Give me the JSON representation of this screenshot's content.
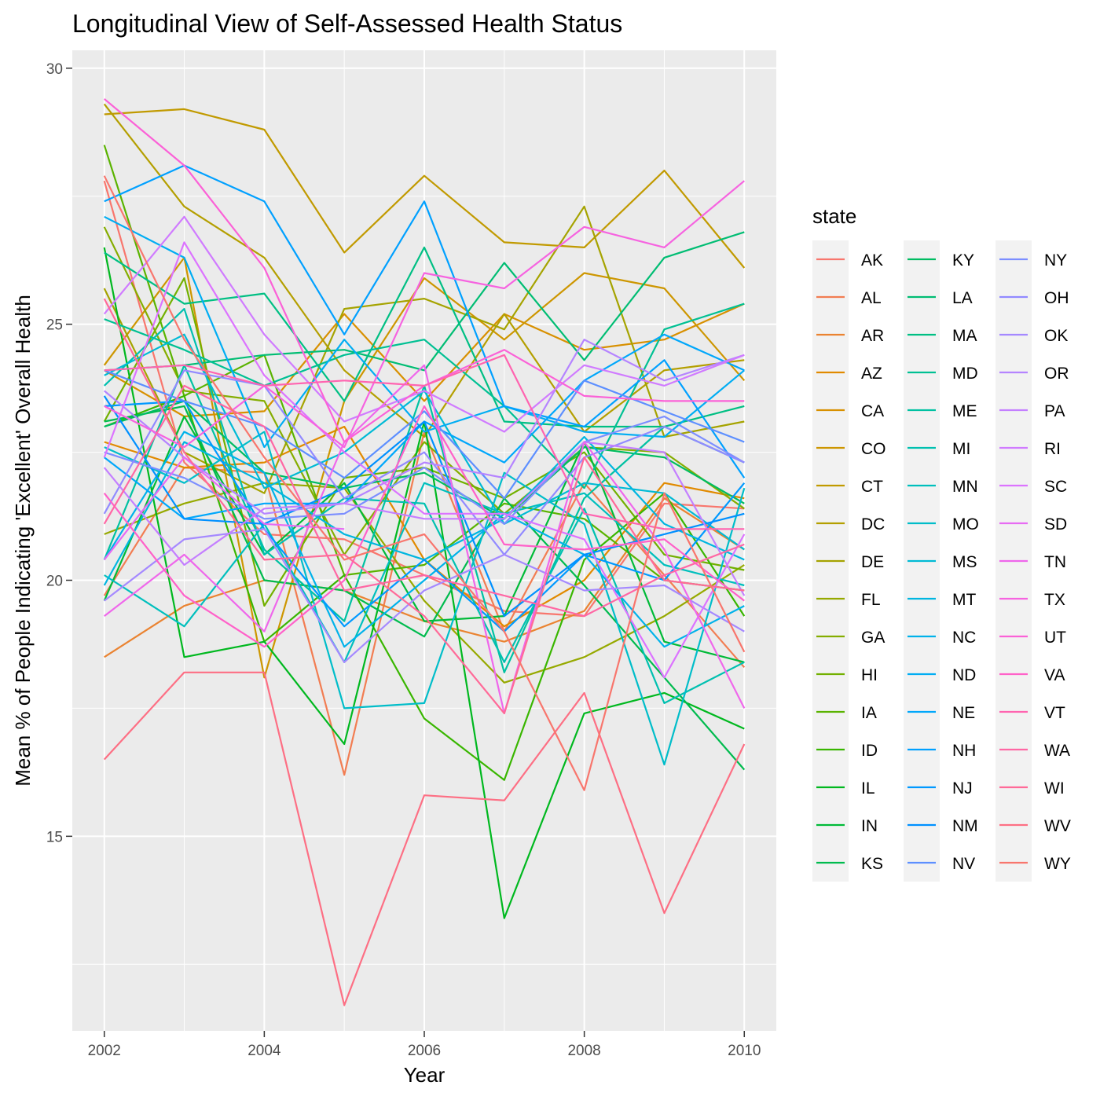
{
  "chart_data": {
    "type": "line",
    "title": "Longitudinal View of Self-Assessed Health Status",
    "xlabel": "Year",
    "ylabel": "Mean % of People Indicating 'Excellent' Overall Health",
    "x": [
      2002,
      2003,
      2004,
      2005,
      2006,
      2007,
      2008,
      2009,
      2010
    ],
    "xlim": [
      2001.6,
      2010.4
    ],
    "ylim": [
      11.2,
      30.35
    ],
    "x_ticks": [
      "2002",
      "2004",
      "2006",
      "2008",
      "2010"
    ],
    "y_ticks": [
      "15",
      "20",
      "25",
      "30"
    ],
    "grid": true,
    "legend": {
      "title": "state",
      "placement": "right",
      "columns": 3
    },
    "series": [
      {
        "name": "AK",
        "color": "#F8766D",
        "values": [
          27.8,
          22.3,
          20.9,
          20.8,
          20.1,
          19.4,
          19.3,
          21.5,
          21.4
        ]
      },
      {
        "name": "AL",
        "color": "#F27D52",
        "values": [
          19.7,
          22.2,
          22.1,
          16.2,
          22.9,
          19.0,
          21.9,
          20.1,
          18.3
        ]
      },
      {
        "name": "AR",
        "color": "#EA8331",
        "values": [
          18.5,
          19.5,
          20.0,
          19.8,
          19.2,
          18.8,
          19.4,
          21.6,
          20.6
        ]
      },
      {
        "name": "AZ",
        "color": "#E18A00",
        "values": [
          22.7,
          22.2,
          22.3,
          23.0,
          20.4,
          19.1,
          20.0,
          21.9,
          21.6
        ]
      },
      {
        "name": "CA",
        "color": "#D89000",
        "values": [
          24.1,
          23.2,
          23.3,
          25.2,
          23.5,
          25.2,
          24.5,
          24.7,
          25.4
        ]
      },
      {
        "name": "CO",
        "color": "#CD9600",
        "values": [
          24.2,
          26.3,
          18.1,
          23.5,
          25.9,
          24.7,
          26.0,
          25.7,
          23.9
        ]
      },
      {
        "name": "CT",
        "color": "#C19A00",
        "values": [
          29.1,
          29.2,
          28.8,
          26.4,
          27.9,
          26.6,
          26.5,
          28.0,
          26.1
        ]
      },
      {
        "name": "DC",
        "color": "#B49F00",
        "values": [
          29.3,
          27.3,
          26.3,
          24.1,
          22.8,
          25.2,
          22.9,
          24.1,
          24.3
        ]
      },
      {
        "name": "DE",
        "color": "#A5A300",
        "values": [
          25.7,
          22.5,
          21.7,
          25.3,
          25.5,
          24.9,
          27.3,
          22.8,
          23.1
        ]
      },
      {
        "name": "FL",
        "color": "#96A900",
        "values": [
          20.9,
          21.5,
          21.9,
          21.8,
          19.6,
          18.0,
          18.5,
          19.3,
          20.3
        ]
      },
      {
        "name": "GA",
        "color": "#85AD00",
        "values": [
          26.9,
          23.7,
          23.5,
          20.5,
          22.7,
          21.3,
          22.6,
          22.5,
          21.4
        ]
      },
      {
        "name": "HI",
        "color": "#72B000",
        "values": [
          23.1,
          25.9,
          19.5,
          22.0,
          22.2,
          21.6,
          22.5,
          20.5,
          20.2
        ]
      },
      {
        "name": "IA",
        "color": "#5AB300",
        "values": [
          28.5,
          23.6,
          24.4,
          20.1,
          20.3,
          21.5,
          21.2,
          20.0,
          19.8
        ]
      },
      {
        "name": "ID",
        "color": "#39B600",
        "values": [
          23.0,
          23.6,
          18.8,
          20.1,
          17.3,
          16.1,
          20.4,
          21.7,
          19.3
        ]
      },
      {
        "name": "IL",
        "color": "#00B81F",
        "values": [
          26.5,
          18.5,
          18.8,
          16.8,
          23.1,
          13.4,
          17.4,
          17.8,
          17.1
        ]
      },
      {
        "name": "IN",
        "color": "#00BA38",
        "values": [
          19.6,
          23.2,
          20.5,
          21.9,
          19.2,
          19.3,
          22.7,
          18.8,
          18.4
        ]
      },
      {
        "name": "KS",
        "color": "#00BB4E",
        "values": [
          23.1,
          23.4,
          20.0,
          19.8,
          18.9,
          21.6,
          19.9,
          18.1,
          16.3
        ]
      },
      {
        "name": "KY",
        "color": "#00BC61",
        "values": [
          23.0,
          23.5,
          22.1,
          21.8,
          22.1,
          21.2,
          22.6,
          22.4,
          21.5
        ]
      },
      {
        "name": "LA",
        "color": "#00BD73",
        "values": [
          24.1,
          24.2,
          24.4,
          24.5,
          24.1,
          26.2,
          24.3,
          26.3,
          26.8
        ]
      },
      {
        "name": "MA",
        "color": "#00BF83",
        "values": [
          26.4,
          25.4,
          25.6,
          23.5,
          26.5,
          23.1,
          23.0,
          23.0,
          23.4
        ]
      },
      {
        "name": "MD",
        "color": "#00C093",
        "values": [
          25.1,
          24.5,
          23.8,
          24.4,
          24.7,
          23.4,
          21.8,
          24.9,
          25.4
        ]
      },
      {
        "name": "ME",
        "color": "#00C1A2",
        "values": [
          20.4,
          24.2,
          20.6,
          19.2,
          23.8,
          18.2,
          21.6,
          23.0,
          22.3
        ]
      },
      {
        "name": "MI",
        "color": "#00C0B0",
        "values": [
          23.8,
          25.3,
          20.5,
          21.6,
          21.5,
          18.4,
          21.4,
          17.6,
          18.4
        ]
      },
      {
        "name": "MN",
        "color": "#00BFBD",
        "values": [
          20.1,
          19.1,
          21.1,
          18.4,
          21.9,
          21.3,
          21.7,
          20.3,
          19.9
        ]
      },
      {
        "name": "MO",
        "color": "#00BDC9",
        "values": [
          22.6,
          21.9,
          22.9,
          17.5,
          17.6,
          22.1,
          21.1,
          16.4,
          21.8
        ]
      },
      {
        "name": "MS",
        "color": "#00BAD5",
        "values": [
          24.0,
          24.8,
          21.8,
          22.5,
          23.7,
          21.1,
          21.9,
          21.7,
          20.6
        ]
      },
      {
        "name": "MT",
        "color": "#00B6E0",
        "values": [
          19.9,
          22.7,
          21.9,
          20.9,
          20.4,
          21.2,
          22.8,
          21.1,
          20.4
        ]
      },
      {
        "name": "NC",
        "color": "#00B2EA",
        "values": [
          20.4,
          22.9,
          22.1,
          18.7,
          20.0,
          21.3,
          20.5,
          18.7,
          19.5
        ]
      },
      {
        "name": "ND",
        "color": "#00ADF3",
        "values": [
          27.1,
          26.3,
          22.6,
          24.7,
          22.9,
          23.4,
          22.9,
          22.8,
          24.1
        ]
      },
      {
        "name": "NE",
        "color": "#00A7FB",
        "values": [
          22.4,
          21.2,
          21.5,
          21.5,
          23.1,
          22.3,
          23.9,
          24.8,
          24.1
        ]
      },
      {
        "name": "NH",
        "color": "#00A0FF",
        "values": [
          27.4,
          28.1,
          27.4,
          24.8,
          27.4,
          23.4,
          23.0,
          24.3,
          22.0
        ]
      },
      {
        "name": "NJ",
        "color": "#0099FF",
        "values": [
          23.4,
          23.5,
          21.0,
          19.1,
          20.4,
          19.0,
          20.5,
          20.0,
          21.9
        ]
      },
      {
        "name": "NM",
        "color": "#0090FF",
        "values": [
          23.6,
          21.2,
          21.1,
          21.8,
          23.1,
          19.3,
          20.5,
          20.9,
          21.3
        ]
      },
      {
        "name": "NV",
        "color": "#5D8FFF",
        "values": [
          24.1,
          23.5,
          23.0,
          22.0,
          23.3,
          21.6,
          23.9,
          23.3,
          22.7
        ]
      },
      {
        "name": "NY",
        "color": "#7C8EFF",
        "values": [
          22.5,
          22.0,
          21.2,
          21.3,
          22.2,
          21.1,
          22.7,
          23.2,
          22.3
        ]
      },
      {
        "name": "OH",
        "color": "#928AFF",
        "values": [
          21.3,
          24.1,
          23.8,
          21.6,
          22.5,
          20.5,
          22.4,
          23.0,
          22.3
        ]
      },
      {
        "name": "OK",
        "color": "#A589FF",
        "values": [
          19.6,
          20.8,
          21.0,
          18.4,
          19.8,
          20.5,
          19.8,
          19.9,
          19.0
        ]
      },
      {
        "name": "OR",
        "color": "#B584FF",
        "values": [
          23.7,
          22.4,
          21.3,
          21.5,
          22.3,
          22.0,
          24.7,
          23.9,
          24.4
        ]
      },
      {
        "name": "PA",
        "color": "#C47FFF",
        "values": [
          22.2,
          20.3,
          21.4,
          21.5,
          21.2,
          21.2,
          22.7,
          22.5,
          19.7
        ]
      },
      {
        "name": "RI",
        "color": "#D07BFF",
        "values": [
          25.2,
          27.1,
          24.8,
          23.1,
          23.7,
          22.9,
          24.2,
          23.8,
          24.4
        ]
      },
      {
        "name": "SC",
        "color": "#DC73FF",
        "values": [
          22.4,
          26.6,
          24.0,
          22.5,
          21.3,
          21.3,
          20.8,
          18.1,
          20.9
        ]
      },
      {
        "name": "SD",
        "color": "#E76BF3",
        "values": [
          20.4,
          22.4,
          21.1,
          21.0,
          null,
          null,
          null,
          null,
          null
        ]
      },
      {
        "name": "TN",
        "color": "#EF67EB",
        "values": [
          19.3,
          20.5,
          19.0,
          22.7,
          24.2,
          17.4,
          22.7,
          20.6,
          17.5
        ]
      },
      {
        "name": "TX",
        "color": "#F663E0",
        "values": [
          23.4,
          22.6,
          23.8,
          22.6,
          26.0,
          25.7,
          26.9,
          26.5,
          27.8
        ]
      },
      {
        "name": "UT",
        "color": "#FB61D7",
        "values": [
          29.4,
          28.1,
          26.1,
          22.7,
          23.8,
          24.5,
          23.6,
          23.5,
          23.5
        ]
      },
      {
        "name": "VA",
        "color": "#FF61C9",
        "values": [
          21.7,
          19.7,
          18.7,
          20.0,
          23.4,
          20.7,
          20.6,
          20.8,
          19.6
        ]
      },
      {
        "name": "VT",
        "color": "#FF64B0",
        "values": [
          24.1,
          24.2,
          23.8,
          23.9,
          23.8,
          24.4,
          21.3,
          21.0,
          21.0
        ]
      },
      {
        "name": "WA",
        "color": "#FF67A4",
        "values": [
          21.1,
          23.8,
          23.0,
          19.8,
          20.1,
          19.7,
          19.3,
          20.1,
          20.7
        ]
      },
      {
        "name": "WI",
        "color": "#FF6A98",
        "values": [
          25.5,
          22.5,
          20.4,
          20.5,
          19.3,
          17.4,
          22.4,
          20.0,
          19.8
        ]
      },
      {
        "name": "WV",
        "color": "#FD6F84",
        "values": [
          16.5,
          18.2,
          18.2,
          11.7,
          15.8,
          15.7,
          17.8,
          13.5,
          16.8
        ]
      },
      {
        "name": "WY",
        "color": "#F8766D",
        "values": [
          27.9,
          24.7,
          22.4,
          20.4,
          20.9,
          19.0,
          15.9,
          21.7,
          18.6
        ]
      }
    ]
  }
}
